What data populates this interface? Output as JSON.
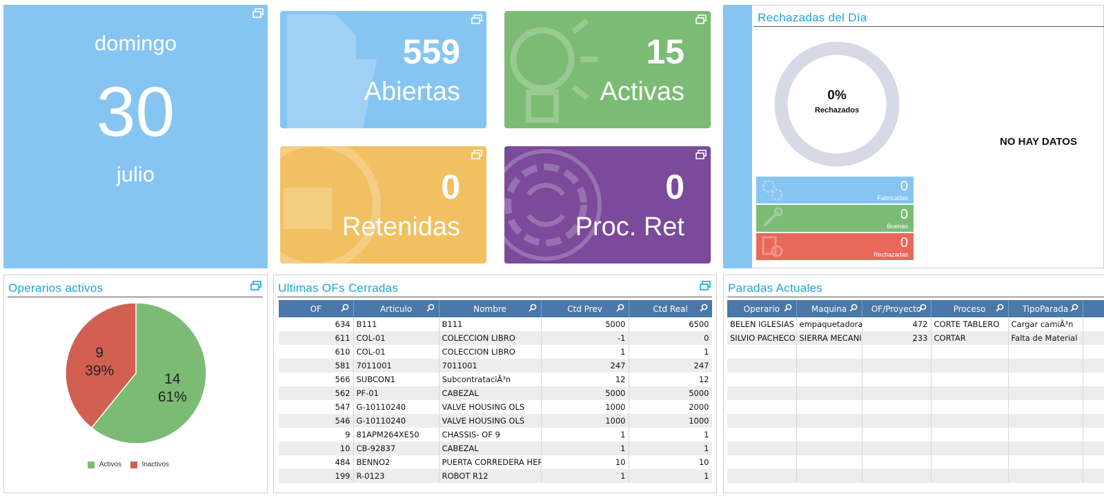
{
  "date_tile": {
    "weekday": "domingo",
    "day": "30",
    "month": "julio"
  },
  "stats": {
    "abiertas": {
      "value": "559",
      "label": "Abiertas",
      "color": "#86c5f2"
    },
    "activas": {
      "value": "15",
      "label": "Activas",
      "color": "#7cbb74"
    },
    "retenidas": {
      "value": "0",
      "label": "Retenidas",
      "color": "#f1c061"
    },
    "proc_ret": {
      "value": "0",
      "label": "Proc. Ret",
      "color": "#7b4a9a"
    }
  },
  "rechazadas": {
    "title": "Rechazadas del Día",
    "donut_percent": "0%",
    "donut_label": "Rechazados",
    "no_data": "NO HAY DATOS",
    "fabricadas": {
      "value": "0",
      "label": "Fabricadas"
    },
    "buenas": {
      "value": "0",
      "label": "Buenas"
    },
    "rechazadas": {
      "value": "0",
      "label": "Rechazadas"
    }
  },
  "operarios": {
    "title": "Operarios activos",
    "chart_data": {
      "type": "pie",
      "categories": [
        "Activos",
        "Inactivos"
      ],
      "values": [
        14,
        9
      ],
      "percent_labels": [
        "61%",
        "39%"
      ],
      "colors": [
        "#7cbb74",
        "#d15f52"
      ],
      "legend": "bottom"
    }
  },
  "ofs": {
    "title": "Ultimas OFs Cerradas",
    "columns": [
      "OF",
      "Articulo",
      "Nombre",
      "Ctd Prev",
      "Ctd Real"
    ],
    "rows": [
      [
        "634",
        "B111",
        "B111",
        "5000",
        "6500"
      ],
      [
        "611",
        "COL-01",
        "COLECCION LIBRO",
        "-1",
        "0"
      ],
      [
        "610",
        "COL-01",
        "COLECCION LIBRO",
        "1",
        "1"
      ],
      [
        "581",
        "7011001",
        "7011001",
        "247",
        "247"
      ],
      [
        "566",
        "SUBCON1",
        "SubcontrataciÃ³n",
        "12",
        "12"
      ],
      [
        "562",
        "PF-01",
        "CABEZAL",
        "5000",
        "5000"
      ],
      [
        "547",
        "G-10110240",
        "VALVE HOUSING OLS",
        "1000",
        "2000"
      ],
      [
        "546",
        "G-10110240",
        "VALVE HOUSING OLS",
        "1000",
        "1000"
      ],
      [
        "9",
        "81APM264XE50",
        "CHASSIS- OF 9",
        "1",
        "1"
      ],
      [
        "10",
        "CB-92837",
        "CABEZAL",
        "1",
        "1"
      ],
      [
        "484",
        "BENNO2",
        "PUERTA CORREDERA HER",
        "10",
        "10"
      ],
      [
        "199",
        "R-0123",
        "ROBOT R12",
        "1",
        "1"
      ]
    ]
  },
  "paradas": {
    "title": "Paradas Actuales",
    "columns": [
      "Operario",
      "Maquina",
      "OF/Proyecto",
      "Proceso",
      "TipoParada"
    ],
    "rows": [
      [
        "BELEN IGLESIAS",
        "empaquetadora",
        "472",
        "CORTE TABLERO",
        "Cargar camiÃ³n"
      ],
      [
        "SILVIO PACHECO",
        "SIERRA MECANI",
        "233",
        "CORTAR",
        "Falta de Material"
      ]
    ]
  }
}
